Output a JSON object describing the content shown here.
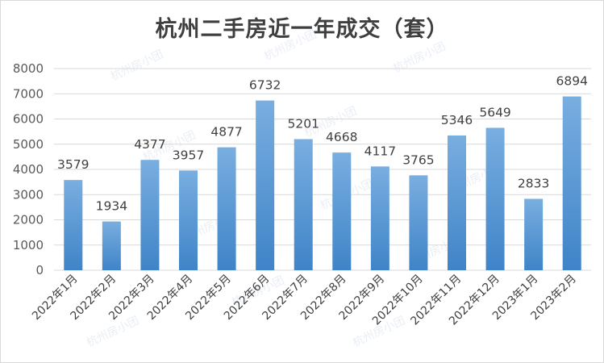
{
  "chart_data": {
    "type": "bar",
    "title": "杭州二手房近一年成交（套）",
    "categories": [
      "2022年1月",
      "2022年2月",
      "2022年3月",
      "2022年4月",
      "2022年5月",
      "2022年6月",
      "2022年7月",
      "2022年8月",
      "2022年9月",
      "2022年10月",
      "2022年11月",
      "2022年12月",
      "2023年1月",
      "2023年2月"
    ],
    "values": [
      3579,
      1934,
      4377,
      3957,
      4877,
      6732,
      5201,
      4668,
      4117,
      3765,
      5346,
      5649,
      2833,
      6894
    ],
    "ylim": [
      0,
      8000
    ],
    "yticks": [
      0,
      1000,
      2000,
      3000,
      4000,
      5000,
      6000,
      7000,
      8000
    ],
    "grid": true,
    "legend": "none",
    "colors": {
      "bar_top": "#79aee0",
      "bar_bottom": "#3f84c8",
      "grid": "#d9d9d9",
      "text": "#404040"
    }
  },
  "watermark": "杭州房小团"
}
